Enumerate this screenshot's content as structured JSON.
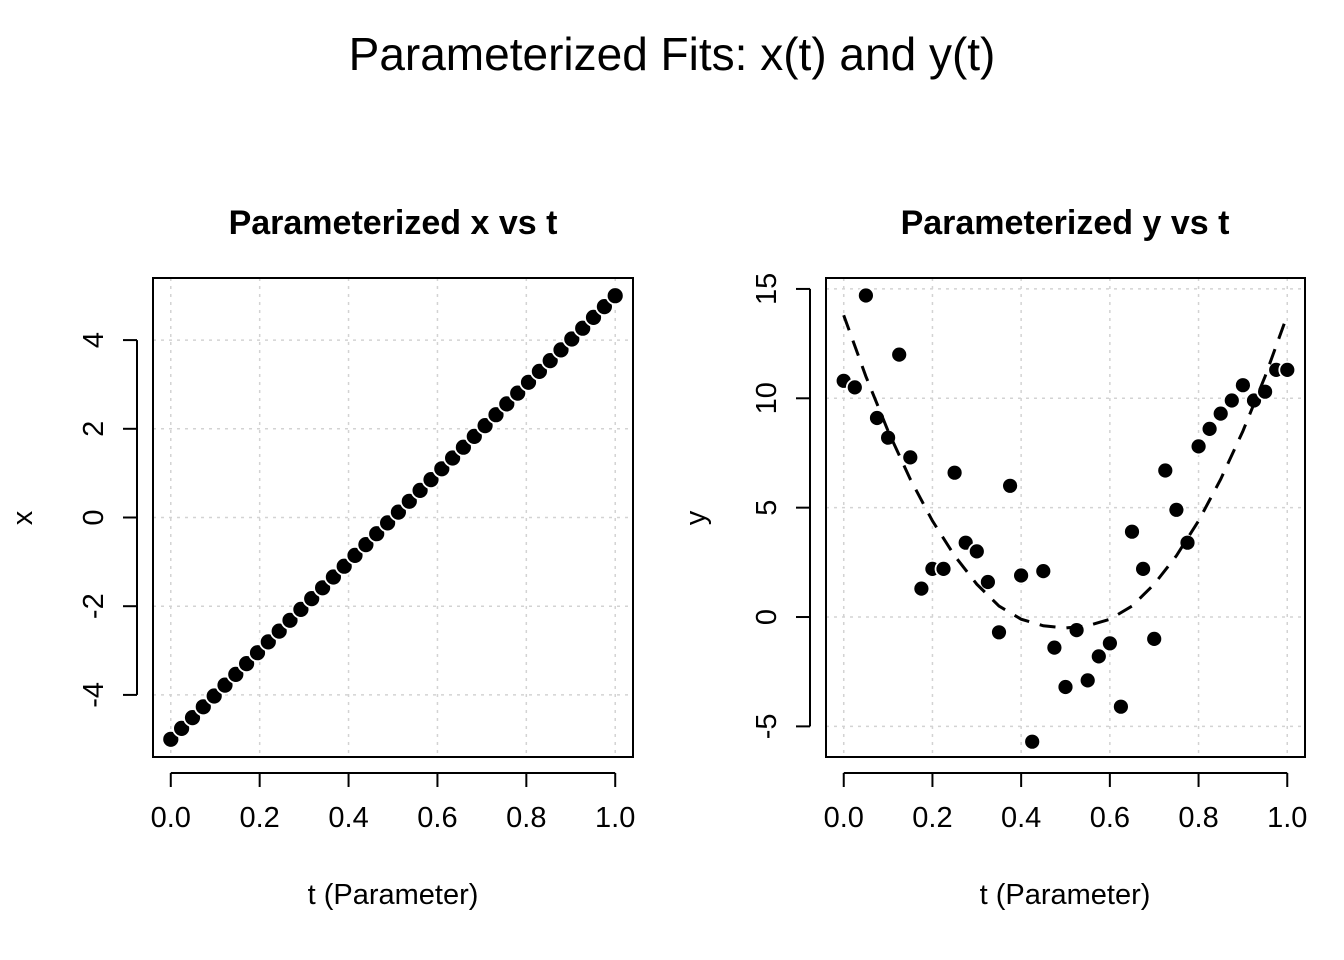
{
  "figure": {
    "title": "Parameterized Fits: x(t) and y(t)"
  },
  "chart_data": [
    {
      "type": "scatter",
      "title": "Parameterized x vs t",
      "xlabel": "t (Parameter)",
      "ylabel": "x",
      "xlim": [
        -0.04,
        1.04
      ],
      "ylim": [
        -5.4,
        5.4
      ],
      "xticks": [
        0.0,
        0.2,
        0.4,
        0.6,
        0.8,
        1.0
      ],
      "xtick_labels": [
        "0.0",
        "0.2",
        "0.4",
        "0.6",
        "0.8",
        "1.0"
      ],
      "yticks": [
        -4,
        -2,
        0,
        2,
        4
      ],
      "ytick_labels": [
        "-4",
        "-2",
        "0",
        "2",
        "4"
      ],
      "grid": true,
      "series": [
        {
          "x": [
            0.0,
            0.0244,
            0.0488,
            0.0732,
            0.0976,
            0.122,
            0.1463,
            0.1707,
            0.1951,
            0.2195,
            0.2439,
            0.2683,
            0.2927,
            0.3171,
            0.3415,
            0.3659,
            0.3902,
            0.4146,
            0.439,
            0.4634,
            0.4878,
            0.5122,
            0.5366,
            0.561,
            0.5854,
            0.6098,
            0.6341,
            0.6585,
            0.6829,
            0.7073,
            0.7317,
            0.7561,
            0.7805,
            0.8049,
            0.8293,
            0.8537,
            0.878,
            0.9024,
            0.9268,
            0.9512,
            0.9756,
            1.0
          ],
          "y": [
            -5.0,
            -4.756,
            -4.512,
            -4.268,
            -4.024,
            -3.78,
            -3.537,
            -3.293,
            -3.049,
            -2.805,
            -2.561,
            -2.317,
            -2.073,
            -1.829,
            -1.585,
            -1.341,
            -1.098,
            -0.854,
            -0.61,
            -0.366,
            -0.122,
            0.122,
            0.366,
            0.61,
            0.854,
            1.098,
            1.341,
            1.585,
            1.829,
            2.073,
            2.317,
            2.561,
            2.805,
            3.049,
            3.293,
            3.537,
            3.78,
            4.024,
            4.268,
            4.512,
            4.756,
            5.0
          ]
        }
      ]
    },
    {
      "type": "scatter",
      "title": "Parameterized y vs t",
      "xlabel": "t (Parameter)",
      "ylabel": "y",
      "xlim": [
        -0.04,
        1.04
      ],
      "ylim": [
        -6.4,
        15.5
      ],
      "xticks": [
        0.0,
        0.2,
        0.4,
        0.6,
        0.8,
        1.0
      ],
      "xtick_labels": [
        "0.0",
        "0.2",
        "0.4",
        "0.6",
        "0.8",
        "1.0"
      ],
      "yticks": [
        -5,
        0,
        5,
        10,
        15
      ],
      "ytick_labels": [
        "-5",
        "0",
        "5",
        "10",
        "15"
      ],
      "grid": true,
      "series": [
        {
          "x": [
            0.0,
            0.025,
            0.05,
            0.075,
            0.1,
            0.125,
            0.15,
            0.175,
            0.2,
            0.225,
            0.25,
            0.275,
            0.3,
            0.325,
            0.35,
            0.375,
            0.4,
            0.425,
            0.45,
            0.475,
            0.5,
            0.525,
            0.55,
            0.575,
            0.6,
            0.625,
            0.65,
            0.675,
            0.7,
            0.725,
            0.75,
            0.775,
            0.8,
            0.825,
            0.85,
            0.875,
            0.9,
            0.925,
            0.95,
            0.975,
            1.0
          ],
          "y": [
            10.8,
            10.5,
            14.7,
            9.1,
            8.2,
            12.0,
            7.3,
            1.3,
            2.2,
            2.2,
            6.6,
            3.4,
            3.0,
            1.6,
            -0.7,
            6.0,
            1.9,
            -5.7,
            2.1,
            -1.4,
            -3.2,
            -0.6,
            -2.9,
            -1.8,
            -1.2,
            -4.1,
            3.9,
            2.2,
            -1.0,
            6.7,
            4.9,
            3.4,
            7.8,
            8.6,
            9.3,
            9.9,
            10.6,
            9.9,
            10.3,
            11.3,
            11.3
          ]
        },
        {
          "style": "dashed",
          "x": [
            0.0,
            0.05,
            0.1,
            0.15,
            0.2,
            0.25,
            0.3,
            0.35,
            0.4,
            0.45,
            0.5,
            0.55,
            0.6,
            0.65,
            0.7,
            0.75,
            0.8,
            0.85,
            0.9,
            0.95,
            1.0
          ],
          "y": [
            13.8,
            11.0,
            8.5,
            6.3,
            4.4,
            2.8,
            1.5,
            0.5,
            -0.1,
            -0.4,
            -0.5,
            -0.4,
            -0.1,
            0.5,
            1.5,
            2.8,
            4.4,
            6.3,
            8.5,
            11.0,
            13.8
          ]
        }
      ]
    }
  ]
}
